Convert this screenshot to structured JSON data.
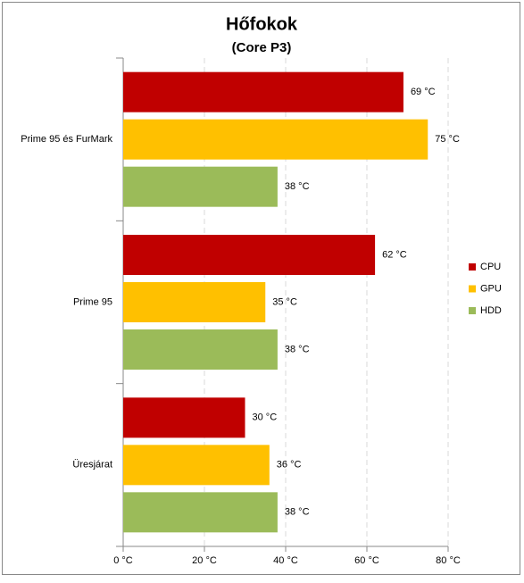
{
  "chart_data": {
    "type": "bar",
    "orientation": "horizontal",
    "title": "Hőfokok",
    "subtitle": "(Core P3)",
    "categories": [
      "Prime 95 és FurMark",
      "Prime 95",
      "Üresjárat"
    ],
    "series": [
      {
        "name": "CPU",
        "color": "#c00000",
        "values": [
          69,
          62,
          30
        ],
        "value_labels": [
          "69 °C",
          "62 °C",
          "30 °C"
        ]
      },
      {
        "name": "GPU",
        "color": "#ffc000",
        "values": [
          75,
          35,
          36
        ],
        "value_labels": [
          "75 °C",
          "35 °C",
          "36 °C"
        ]
      },
      {
        "name": "HDD",
        "color": "#9bbb59",
        "values": [
          38,
          38,
          38
        ],
        "value_labels": [
          "38 °C",
          "38 °C",
          "38 °C"
        ]
      }
    ],
    "xlim": [
      0,
      80
    ],
    "xticks": [
      {
        "value": 0,
        "label": "0 °C"
      },
      {
        "value": 20,
        "label": "20 °C"
      },
      {
        "value": 40,
        "label": "40 °C"
      },
      {
        "value": 60,
        "label": "60 °C"
      },
      {
        "value": 80,
        "label": "80 °C"
      }
    ],
    "grid": true,
    "legend": "right"
  }
}
